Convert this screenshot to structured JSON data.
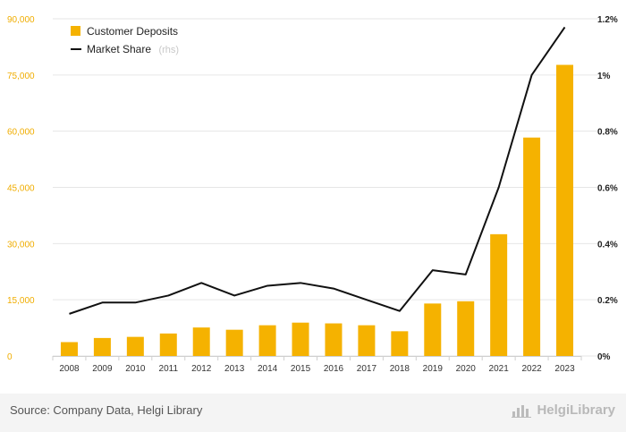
{
  "chart_data": {
    "type": "bar+line",
    "categories": [
      "2008",
      "2009",
      "2010",
      "2011",
      "2012",
      "2013",
      "2014",
      "2015",
      "2016",
      "2017",
      "2018",
      "2019",
      "2020",
      "2021",
      "2022",
      "2023"
    ],
    "series": [
      {
        "name": "Customer Deposits",
        "kind": "bar",
        "axis": "left",
        "values": [
          3700,
          4800,
          5100,
          6000,
          7600,
          7000,
          8200,
          8900,
          8700,
          8200,
          6600,
          14000,
          14600,
          32500,
          58300,
          77700
        ]
      },
      {
        "name": "Market Share",
        "name_suffix": "(rhs)",
        "kind": "line",
        "axis": "right",
        "values": [
          0.15,
          0.19,
          0.19,
          0.215,
          0.26,
          0.215,
          0.25,
          0.26,
          0.24,
          0.2,
          0.16,
          0.305,
          0.29,
          0.6,
          1.0,
          1.17
        ]
      }
    ],
    "y_left": {
      "min": 0,
      "max": 90000,
      "ticks": [
        "0",
        "15,000",
        "30,000",
        "45,000",
        "60,000",
        "75,000",
        "90,000"
      ]
    },
    "y_right": {
      "min": 0,
      "max": 1.2,
      "ticks": [
        "0%",
        "0.2%",
        "0.4%",
        "0.6%",
        "0.8%",
        "1%",
        "1.2%"
      ]
    },
    "grid": true,
    "legend_position": "top-left",
    "colors": {
      "bar": "#f5b200",
      "line": "#111111",
      "grid": "#e6e6e6",
      "left_axis_text": "#f0ad00"
    }
  },
  "footer": {
    "source": "Source: Company Data, Helgi Library",
    "brand": "HelgiLibrary"
  }
}
